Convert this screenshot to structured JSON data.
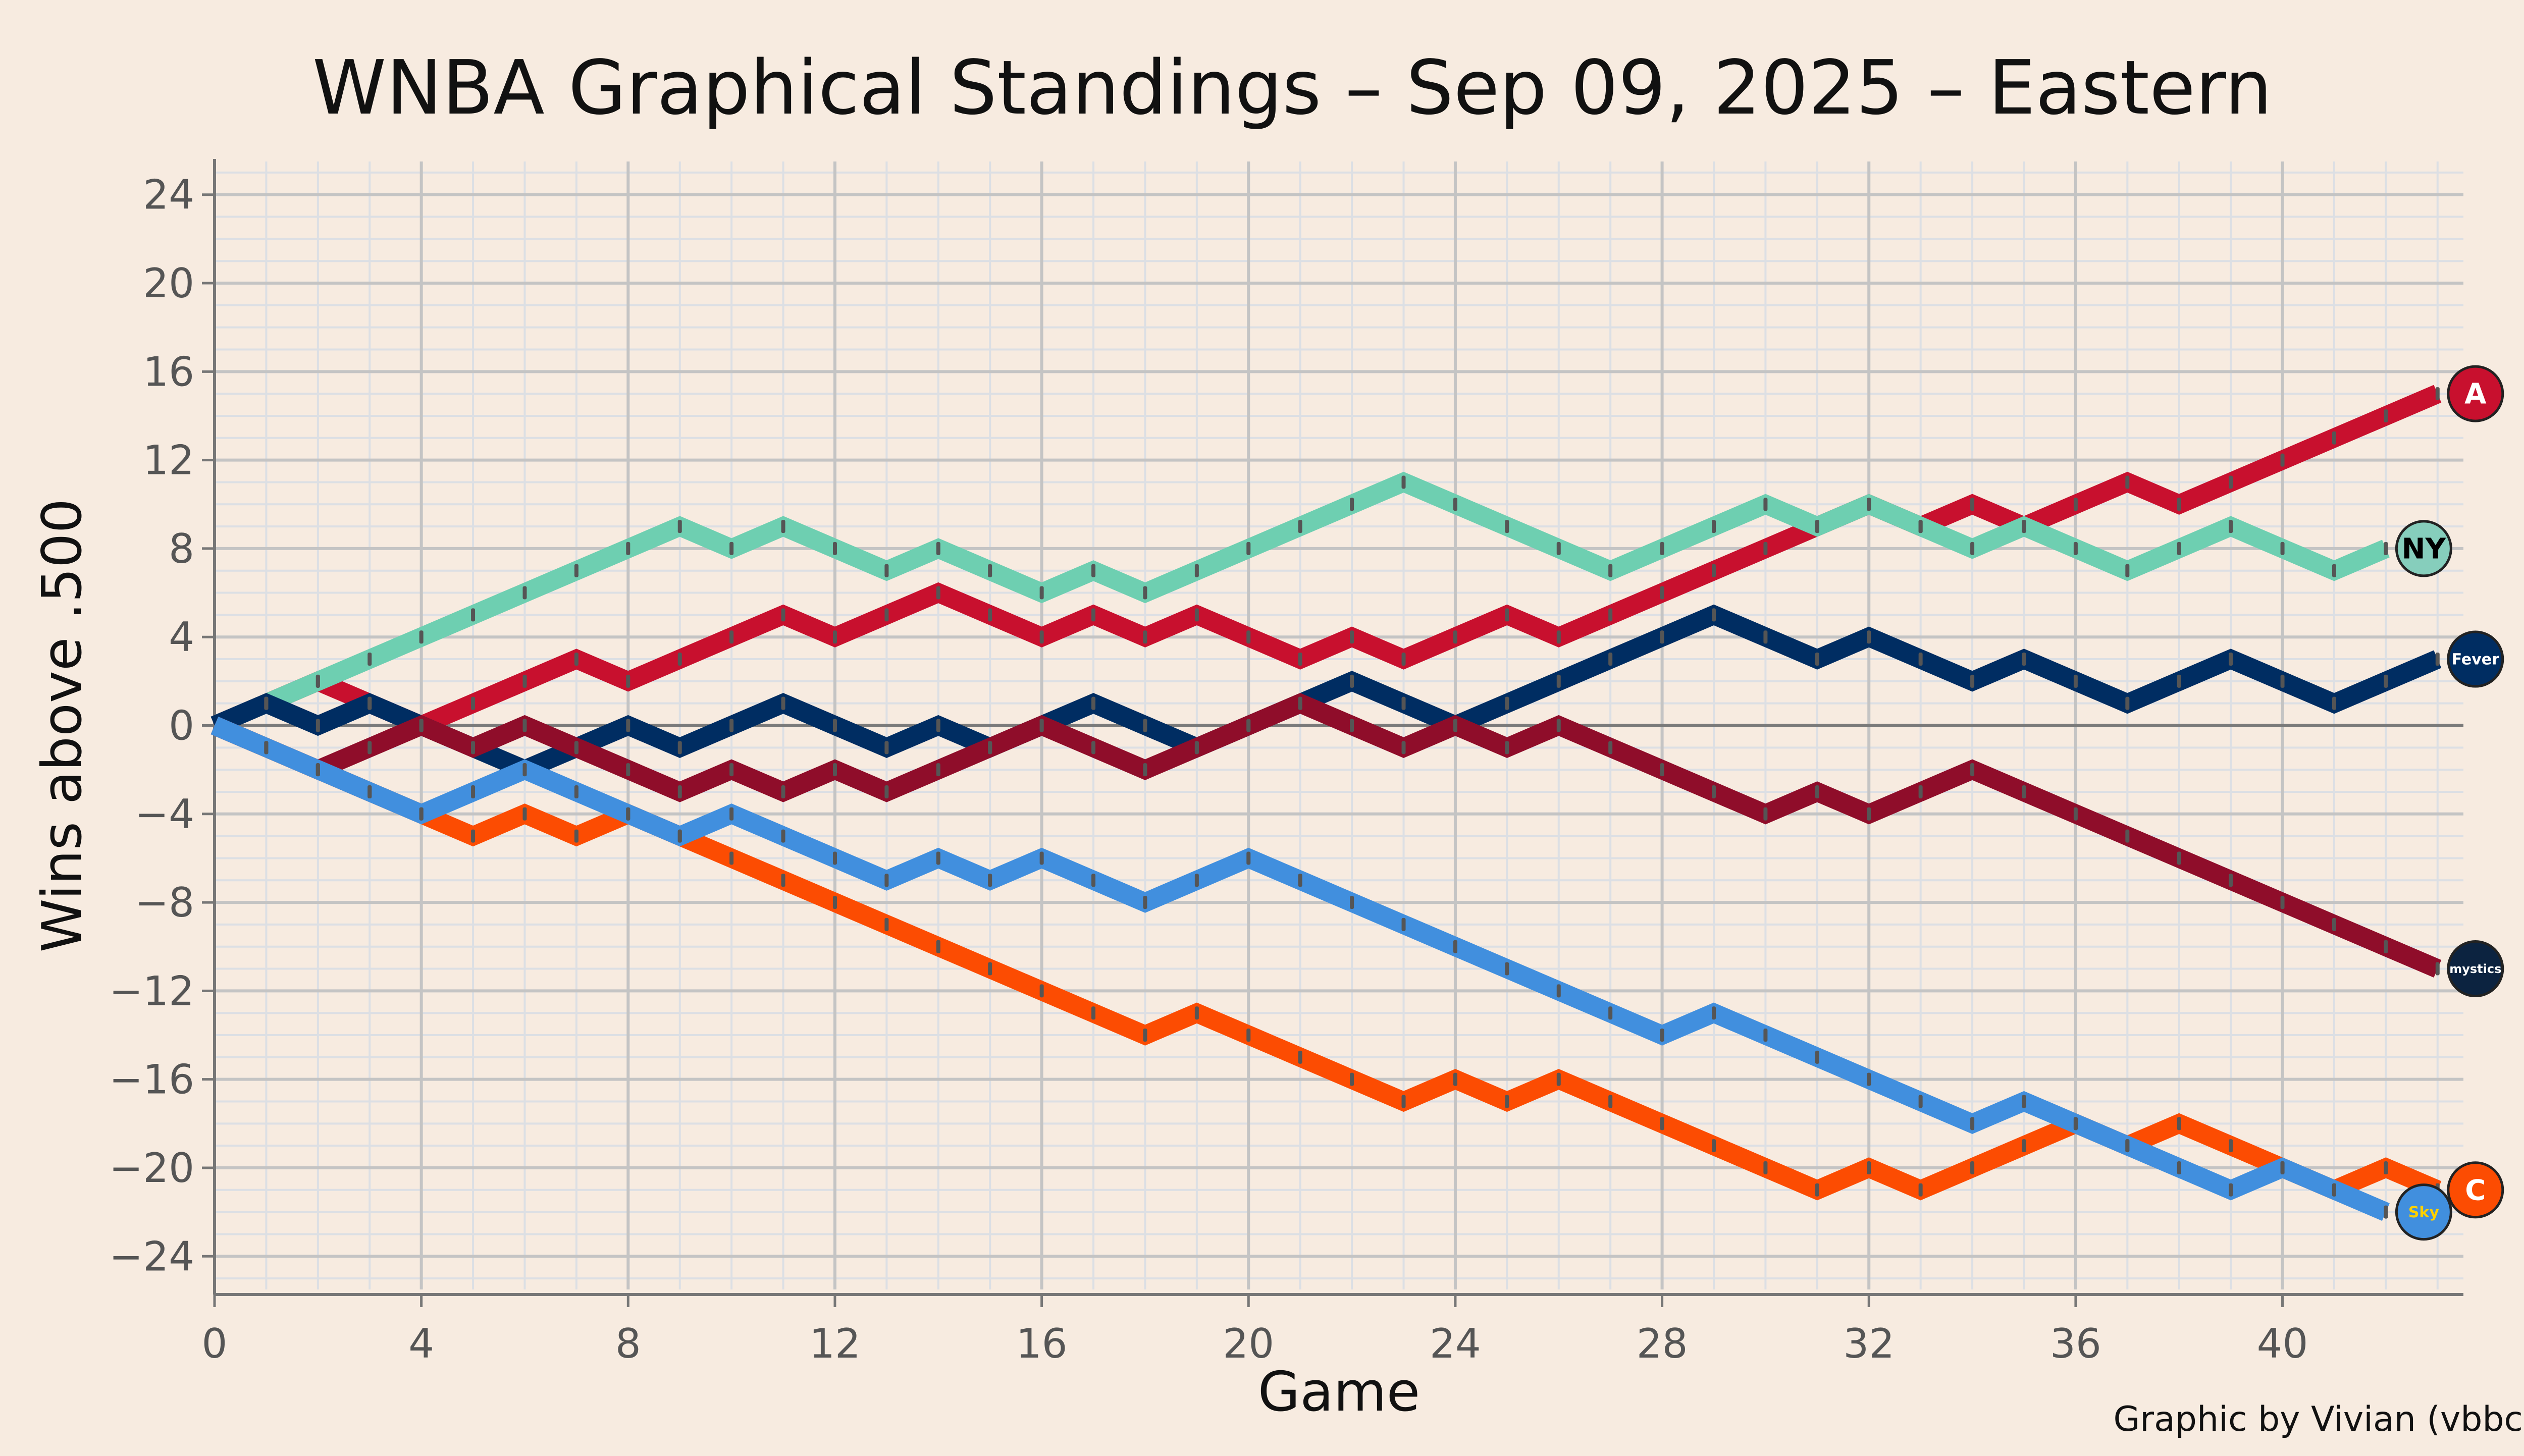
{
  "chart_data": {
    "type": "line",
    "title": "WNBA Graphical Standings – Sep 09, 2025 – Eastern",
    "xlabel": "Game",
    "ylabel": "Wins above .500",
    "credit": "Graphic by Vivian (vbbcla)",
    "xlim": [
      0,
      43.5
    ],
    "ylim": [
      -25.5,
      25.5
    ],
    "xticks": [
      0,
      4,
      8,
      12,
      16,
      20,
      24,
      28,
      32,
      36,
      40
    ],
    "yticks": [
      -24,
      -20,
      -16,
      -12,
      -8,
      -4,
      0,
      4,
      8,
      12,
      16,
      20,
      24
    ],
    "ytick_labels": [
      "−24",
      "−20",
      "−16",
      "−12",
      "−8",
      "−4",
      "0",
      "4",
      "8",
      "12",
      "16",
      "20",
      "24"
    ],
    "grid": true,
    "legend": "team logos at line ends (right)",
    "series": [
      {
        "color": "#c8102e",
        "logo_text": "A",
        "logo_bg": "#c8102e",
        "logo_fg": "#ffffff",
        "values": [
          0,
          1,
          2,
          1,
          0,
          1,
          2,
          3,
          2,
          3,
          4,
          5,
          4,
          5,
          6,
          5,
          4,
          5,
          4,
          5,
          4,
          3,
          4,
          3,
          4,
          5,
          4,
          5,
          6,
          7,
          8,
          9,
          10,
          9,
          10,
          9,
          10,
          11,
          10,
          11,
          12,
          13,
          14,
          15
        ]
      },
      {
        "color": "#6ecfb1",
        "logo_text": "NY",
        "logo_bg": "#86cebc",
        "logo_fg": "#000000",
        "values": [
          0,
          1,
          2,
          3,
          4,
          5,
          6,
          7,
          8,
          9,
          8,
          9,
          8,
          7,
          8,
          7,
          6,
          7,
          6,
          7,
          8,
          9,
          10,
          11,
          10,
          9,
          8,
          7,
          8,
          9,
          10,
          9,
          10,
          9,
          8,
          9,
          8,
          7,
          8,
          9,
          8,
          7,
          8
        ]
      },
      {
        "color": "#002d62",
        "logo_text": "Fever",
        "logo_bg": "#002d62",
        "logo_fg": "#ffffff",
        "values": [
          0,
          1,
          0,
          1,
          0,
          -1,
          -2,
          -1,
          0,
          -1,
          0,
          1,
          0,
          -1,
          0,
          -1,
          0,
          1,
          0,
          -1,
          0,
          1,
          2,
          1,
          0,
          1,
          2,
          3,
          4,
          5,
          4,
          3,
          4,
          3,
          2,
          3,
          2,
          1,
          2,
          3,
          2,
          1,
          2,
          3
        ]
      },
      {
        "color": "#8f0d2a",
        "logo_text": "mystics",
        "logo_bg": "#0c2340",
        "logo_fg": "#ffffff",
        "values": [
          0,
          -1,
          -2,
          -1,
          0,
          -1,
          0,
          -1,
          -2,
          -3,
          -2,
          -3,
          -2,
          -3,
          -2,
          -1,
          0,
          -1,
          -2,
          -1,
          0,
          1,
          0,
          -1,
          0,
          -1,
          0,
          -1,
          -2,
          -3,
          -4,
          -3,
          -4,
          -3,
          -2,
          -3,
          -4,
          -5,
          -6,
          -7,
          -8,
          -9,
          -10,
          -11
        ]
      },
      {
        "color": "#fc4c02",
        "logo_text": "C",
        "logo_bg": "#fc4c02",
        "logo_fg": "#ffffff",
        "values": [
          0,
          -1,
          -2,
          -3,
          -4,
          -5,
          -4,
          -5,
          -4,
          -5,
          -6,
          -7,
          -8,
          -9,
          -10,
          -11,
          -12,
          -13,
          -14,
          -13,
          -14,
          -15,
          -16,
          -17,
          -16,
          -17,
          -16,
          -17,
          -18,
          -19,
          -20,
          -21,
          -20,
          -21,
          -20,
          -19,
          -18,
          -19,
          -18,
          -19,
          -20,
          -21,
          -20,
          -21
        ]
      },
      {
        "color": "#418fde",
        "logo_text": "Sky",
        "logo_bg": "#418fde",
        "logo_fg": "#ffd100",
        "values": [
          0,
          -1,
          -2,
          -3,
          -4,
          -3,
          -2,
          -3,
          -4,
          -5,
          -4,
          -5,
          -6,
          -7,
          -6,
          -7,
          -6,
          -7,
          -8,
          -7,
          -6,
          -7,
          -8,
          -9,
          -10,
          -11,
          -12,
          -13,
          -14,
          -13,
          -14,
          -15,
          -16,
          -17,
          -18,
          -17,
          -18,
          -19,
          -20,
          -21,
          -20,
          -21,
          -22
        ]
      }
    ]
  }
}
